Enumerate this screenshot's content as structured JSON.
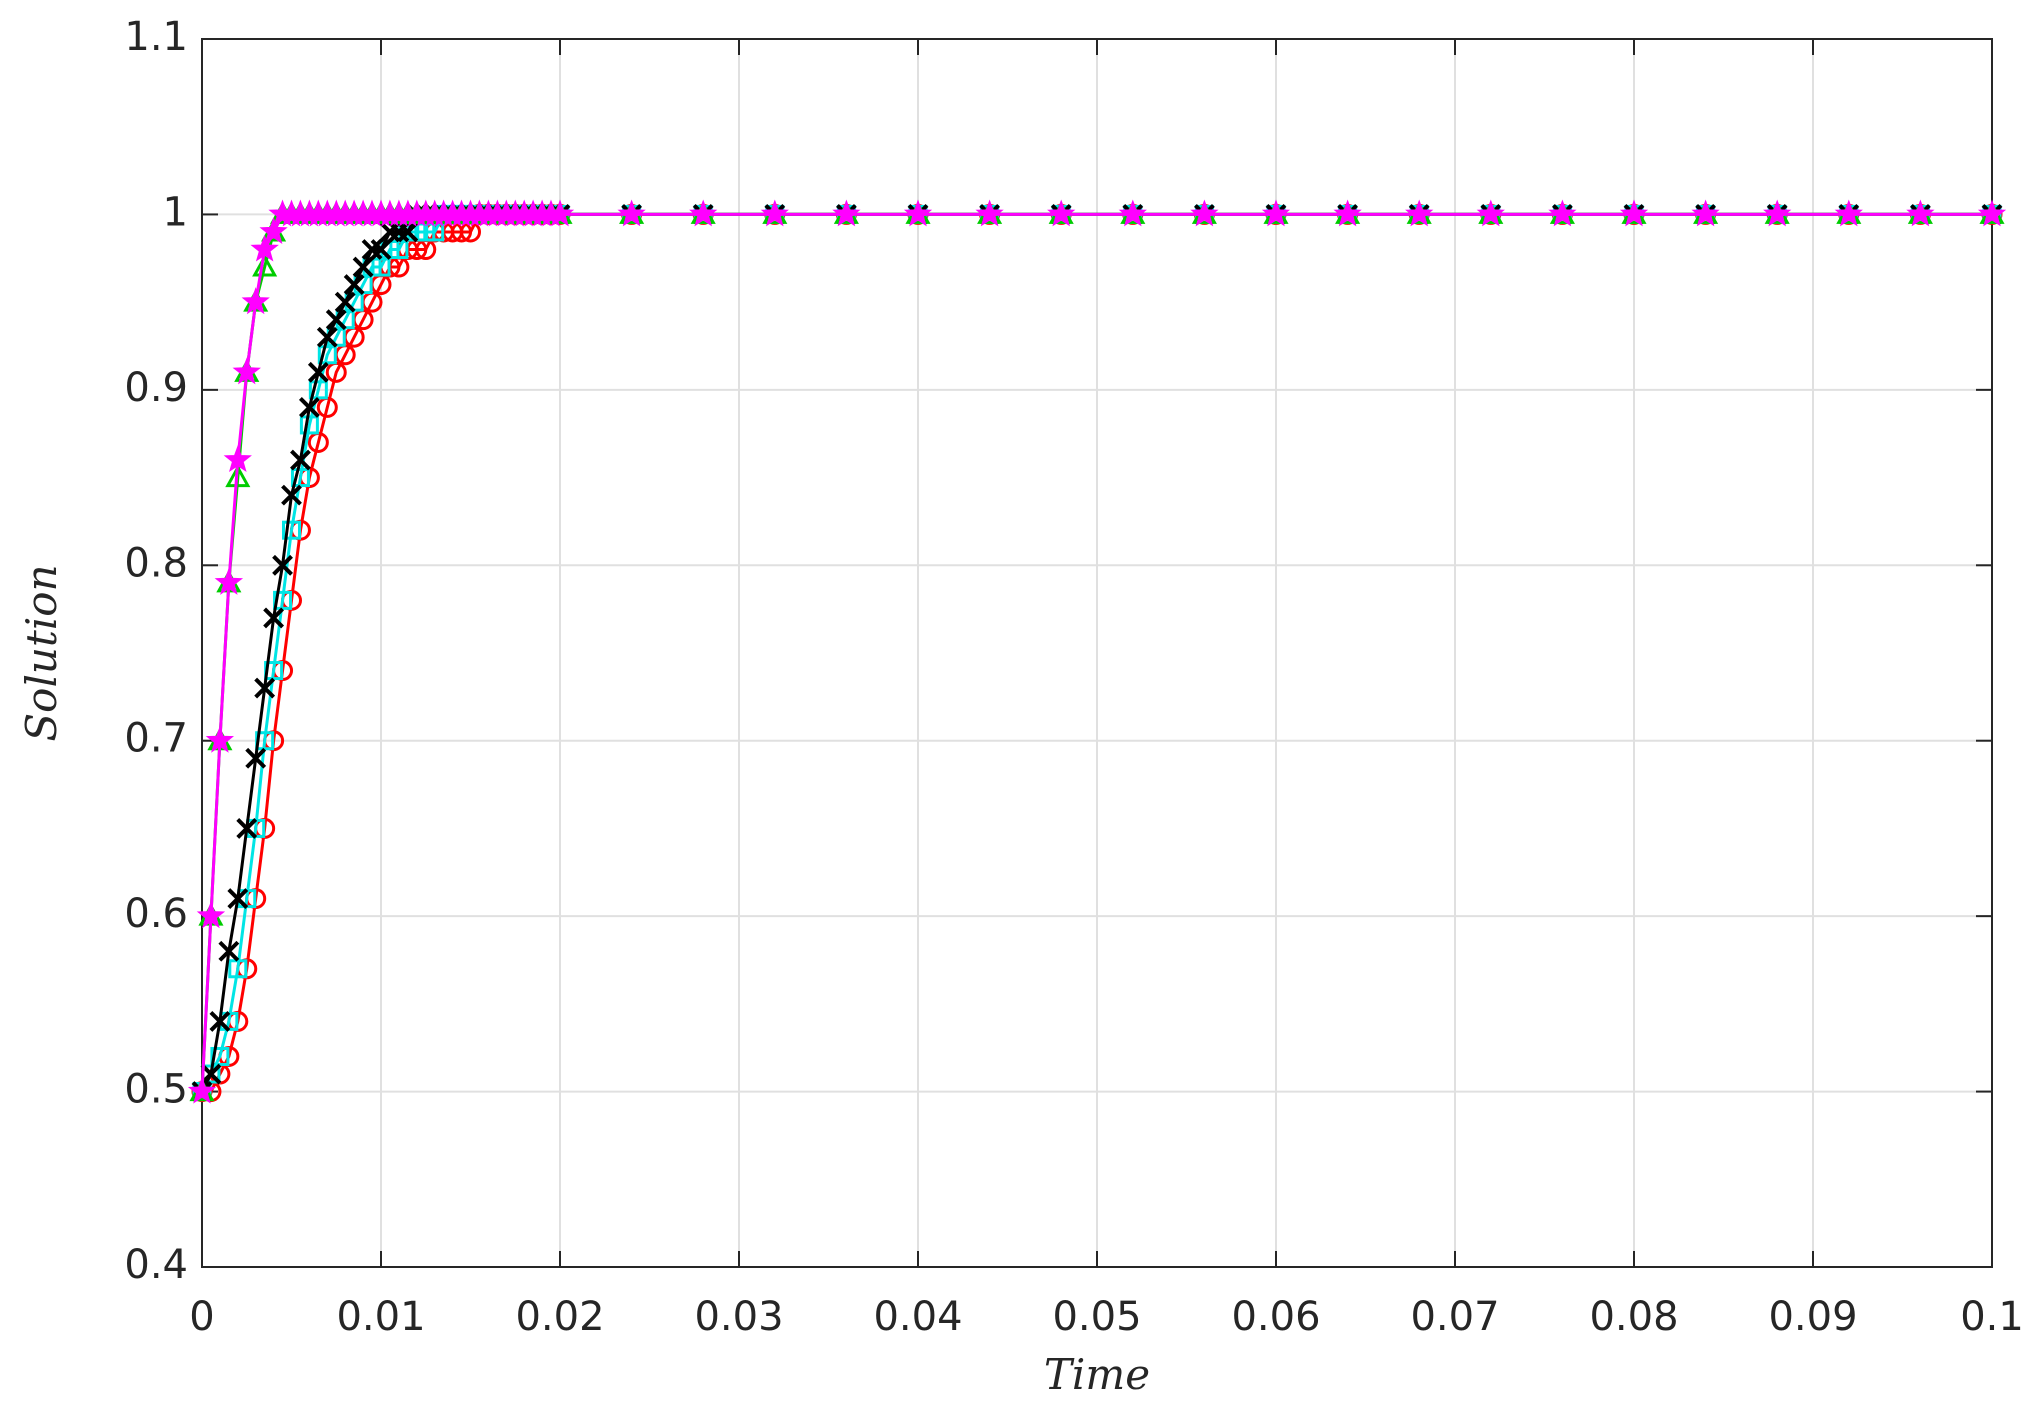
{
  "chart_data": {
    "type": "line",
    "xlabel": "Time",
    "ylabel": "Solution",
    "x": [
      0,
      0.0005,
      0.001,
      0.0015,
      0.002,
      0.0025,
      0.003,
      0.0035,
      0.004,
      0.0045,
      0.005,
      0.0055,
      0.006,
      0.0065,
      0.007,
      0.0075,
      0.008,
      0.0085,
      0.009,
      0.0095,
      0.01,
      0.0105,
      0.011,
      0.0115,
      0.012,
      0.0125,
      0.013,
      0.0135,
      0.014,
      0.0145,
      0.015,
      0.0155,
      0.016,
      0.0165,
      0.017,
      0.0175,
      0.018,
      0.0185,
      0.019,
      0.0195,
      0.02,
      0.024,
      0.028,
      0.032,
      0.036,
      0.04,
      0.044,
      0.048,
      0.052,
      0.056,
      0.06,
      0.064,
      0.068,
      0.072,
      0.076,
      0.08,
      0.084,
      0.088,
      0.092,
      0.096,
      0.1
    ],
    "series": [
      {
        "color": "#ff0000",
        "marker": "circle",
        "values": [
          0.5,
          0.5,
          0.51,
          0.52,
          0.54,
          0.57,
          0.61,
          0.65,
          0.7,
          0.74,
          0.78,
          0.82,
          0.85,
          0.87,
          0.89,
          0.91,
          0.92,
          0.93,
          0.94,
          0.95,
          0.96,
          0.97,
          0.97,
          0.98,
          0.98,
          0.98,
          0.99,
          0.99,
          0.99,
          0.99,
          0.99,
          1,
          1,
          1,
          1,
          1,
          1,
          1,
          1,
          1,
          1,
          1,
          1,
          1,
          1,
          1,
          1,
          1,
          1,
          1,
          1,
          1,
          1,
          1,
          1,
          1,
          1,
          1,
          1,
          1,
          1
        ]
      },
      {
        "color": "#00e5e5",
        "marker": "square",
        "values": [
          0.5,
          0.51,
          0.52,
          0.54,
          0.57,
          0.61,
          0.65,
          0.7,
          0.74,
          0.78,
          0.82,
          0.85,
          0.88,
          0.9,
          0.92,
          0.93,
          0.94,
          0.95,
          0.96,
          0.97,
          0.97,
          0.98,
          0.98,
          0.99,
          0.99,
          0.99,
          0.99,
          1,
          1,
          1,
          1,
          1,
          1,
          1,
          1,
          1,
          1,
          1,
          1,
          1,
          1,
          1,
          1,
          1,
          1,
          1,
          1,
          1,
          1,
          1,
          1,
          1,
          1,
          1,
          1,
          1,
          1,
          1,
          1,
          1,
          1
        ]
      },
      {
        "color": "#000000",
        "marker": "x",
        "values": [
          0.5,
          0.51,
          0.54,
          0.58,
          0.61,
          0.65,
          0.69,
          0.73,
          0.77,
          0.8,
          0.84,
          0.86,
          0.89,
          0.91,
          0.93,
          0.94,
          0.95,
          0.96,
          0.97,
          0.98,
          0.98,
          0.99,
          0.99,
          0.99,
          1,
          1,
          1,
          1,
          1,
          1,
          1,
          1,
          1,
          1,
          1,
          1,
          1,
          1,
          1,
          1,
          1,
          1,
          1,
          1,
          1,
          1,
          1,
          1,
          1,
          1,
          1,
          1,
          1,
          1,
          1,
          1,
          1,
          1,
          1,
          1,
          1
        ]
      },
      {
        "color": "#00cc00",
        "marker": "triangle",
        "values": [
          0.5,
          0.6,
          0.7,
          0.79,
          0.85,
          0.91,
          0.95,
          0.97,
          0.99,
          1,
          1,
          1,
          1,
          1,
          1,
          1,
          1,
          1,
          1,
          1,
          1,
          1,
          1,
          1,
          1,
          1,
          1,
          1,
          1,
          1,
          1,
          1,
          1,
          1,
          1,
          1,
          1,
          1,
          1,
          1,
          1,
          1,
          1,
          1,
          1,
          1,
          1,
          1,
          1,
          1,
          1,
          1,
          1,
          1,
          1,
          1,
          1,
          1,
          1,
          1,
          1
        ]
      },
      {
        "color": "#ff00ff",
        "marker": "star",
        "values": [
          0.5,
          0.6,
          0.7,
          0.79,
          0.86,
          0.91,
          0.95,
          0.98,
          0.99,
          1,
          1,
          1,
          1,
          1,
          1,
          1,
          1,
          1,
          1,
          1,
          1,
          1,
          1,
          1,
          1,
          1,
          1,
          1,
          1,
          1,
          1,
          1,
          1,
          1,
          1,
          1,
          1,
          1,
          1,
          1,
          1,
          1,
          1,
          1,
          1,
          1,
          1,
          1,
          1,
          1,
          1,
          1,
          1,
          1,
          1,
          1,
          1,
          1,
          1,
          1,
          1
        ]
      }
    ],
    "xlim": [
      0,
      0.1
    ],
    "xticks": [
      0,
      0.01,
      0.02,
      0.03,
      0.04,
      0.05,
      0.06,
      0.07,
      0.08,
      0.09,
      0.1
    ],
    "ylim": [
      0.4,
      1.1
    ],
    "yticks": [
      0.4,
      0.5,
      0.6,
      0.7,
      0.8,
      0.9,
      1,
      1.1
    ],
    "grid": true
  }
}
